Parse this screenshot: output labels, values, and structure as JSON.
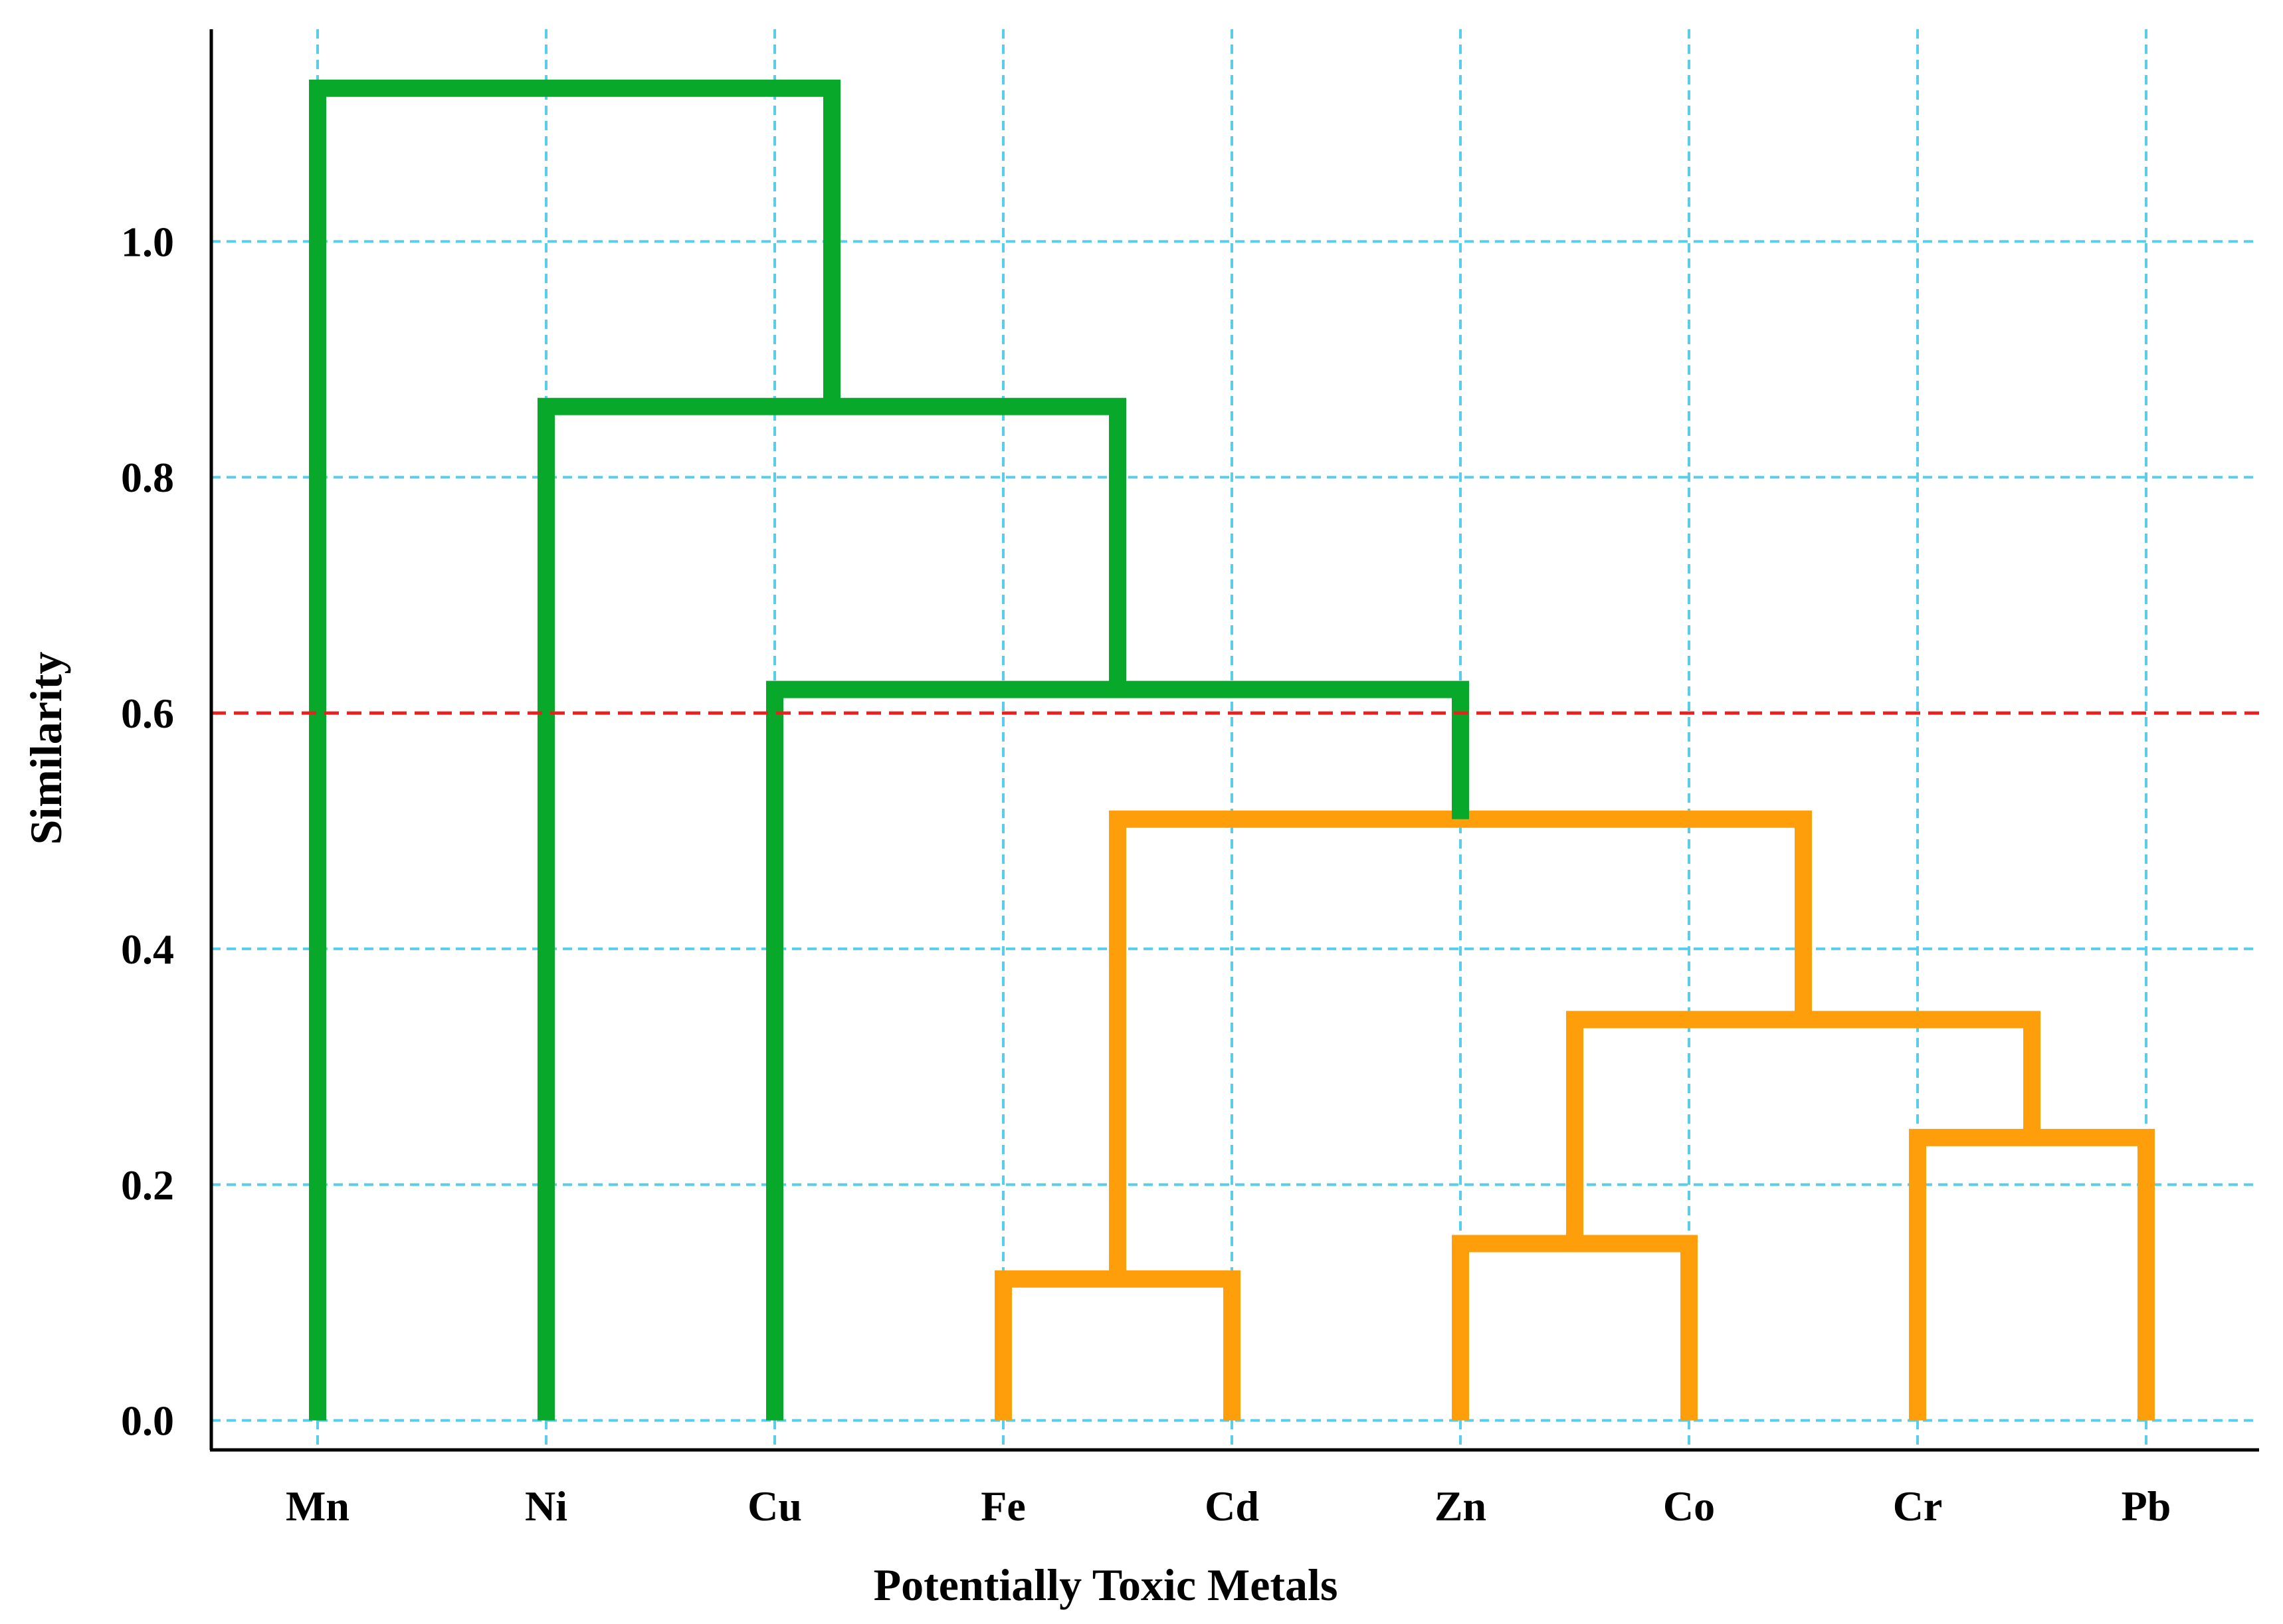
{
  "chart_data": {
    "type": "dendrogram",
    "title": "",
    "xlabel": "Potentially Toxic Metals",
    "ylabel": "Similarity",
    "ylim": [
      -0.025,
      1.18
    ],
    "yticks": [
      {
        "value": 0.0,
        "label": "0.0"
      },
      {
        "value": 0.2,
        "label": "0.2"
      },
      {
        "value": 0.4,
        "label": "0.4"
      },
      {
        "value": 0.6,
        "label": "0.6"
      },
      {
        "value": 0.8,
        "label": "0.8"
      },
      {
        "value": 1.0,
        "label": "1.0"
      }
    ],
    "leaves": [
      "Mn",
      "Ni",
      "Cu",
      "Fe",
      "Cd",
      "Zn",
      "Co",
      "Cr",
      "Pb"
    ],
    "cut_line": {
      "value": 0.6,
      "color": "#e8201e"
    },
    "grid": true,
    "colors": {
      "group_a": "#08a82a",
      "group_b": "#fe9e0a",
      "grid": "#58ceeb"
    },
    "merges": [
      {
        "left": "Fe",
        "right": "Cd",
        "height": 0.12,
        "group": "group_b"
      },
      {
        "left": "Zn",
        "right": "Co",
        "height": 0.15,
        "group": "group_b"
      },
      {
        "left": "Cr",
        "right": "Pb",
        "height": 0.24,
        "group": "group_b"
      },
      {
        "left": "Zn+Co",
        "right": "Cr+Pb",
        "height": 0.34,
        "group": "group_b"
      },
      {
        "left": "Fe+Cd",
        "right": "Zn+Co+Cr+Pb",
        "height": 0.51,
        "group": "group_b"
      },
      {
        "left": "Cu",
        "right": "Fe+Cd+Zn+Co+Cr+Pb",
        "height": 0.62,
        "group": "group_a"
      },
      {
        "left": "Ni",
        "right": "Cu+Fe+Cd+Zn+Co+Cr+Pb",
        "height": 0.86,
        "group": "group_a"
      },
      {
        "left": "Mn",
        "right": "Ni+Cu+Fe+Cd+Zn+Co+Cr+Pb",
        "height": 1.13,
        "group": "group_a"
      }
    ]
  }
}
